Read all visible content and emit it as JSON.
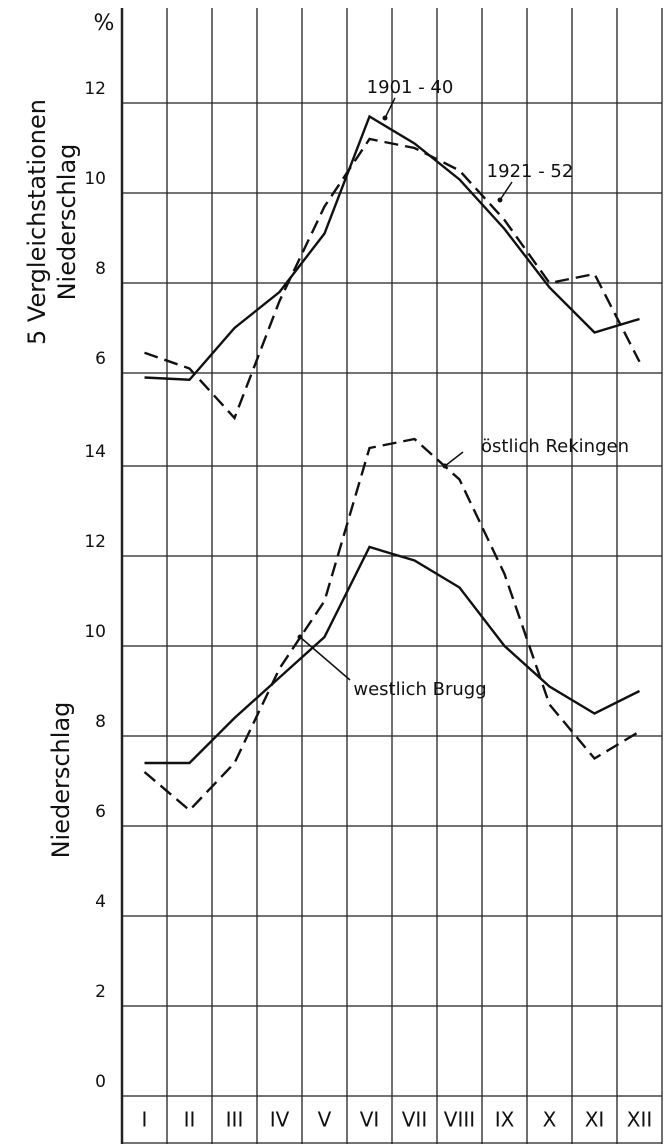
{
  "chart_data": [
    {
      "type": "line",
      "unit": "%",
      "ylabel": [
        "5 Vergleichstationen",
        "Niederschlag"
      ],
      "ylim": [
        5,
        14
      ],
      "yticks": [
        6,
        8,
        10,
        12
      ],
      "grid": true,
      "series": [
        {
          "name": "1901 - 40",
          "color": "#111111",
          "style": "solid",
          "values": [
            5.9,
            5.85,
            7.0,
            7.8,
            9.1,
            11.7,
            11.1,
            10.3,
            9.2,
            7.9,
            6.9,
            7.2
          ]
        },
        {
          "name": "1921 - 52",
          "color": "#111111",
          "style": "dashed",
          "values": [
            6.45,
            6.1,
            5.0,
            7.6,
            9.7,
            11.2,
            11.0,
            10.5,
            9.4,
            8.0,
            8.2,
            6.25
          ]
        }
      ]
    },
    {
      "type": "line",
      "ylabel": [
        "Niederschlag"
      ],
      "categories": [
        "I",
        "II",
        "III",
        "IV",
        "V",
        "VI",
        "VII",
        "VIII",
        "IX",
        "X",
        "XI",
        "XII"
      ],
      "ylim": [
        0,
        15
      ],
      "yticks": [
        0,
        2,
        4,
        6,
        8,
        10,
        12,
        14
      ],
      "grid": true,
      "series": [
        {
          "name": "westlich Brugg",
          "color": "#111111",
          "style": "solid",
          "values": [
            7.4,
            7.4,
            8.4,
            9.3,
            10.2,
            12.2,
            11.9,
            11.3,
            10.0,
            9.1,
            8.5,
            9.0
          ]
        },
        {
          "name": "östlich Rekingen",
          "color": "#111111",
          "style": "dashed",
          "values": [
            7.2,
            6.35,
            7.4,
            9.5,
            11.0,
            14.4,
            14.6,
            13.7,
            11.6,
            8.7,
            7.5,
            8.1
          ]
        }
      ]
    }
  ]
}
